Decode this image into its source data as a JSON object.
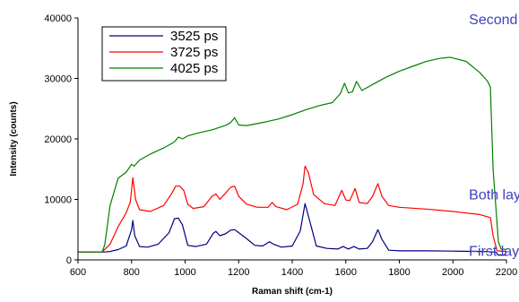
{
  "chart_data": {
    "type": "line",
    "xlabel": "Raman shift (cm-1)",
    "ylabel": "Intensity (counts)",
    "xlim": [
      600,
      2200
    ],
    "ylim": [
      0,
      40000
    ],
    "x_ticks": [
      600,
      800,
      1000,
      1200,
      1400,
      1600,
      1800,
      2000,
      2200
    ],
    "y_ticks": [
      0,
      10000,
      20000,
      30000,
      40000
    ],
    "grid": false,
    "legend_position": "top-left",
    "series": [
      {
        "name": "3525 ps",
        "color": "#000080",
        "x": [
          600,
          700,
          720,
          750,
          780,
          800,
          805,
          812,
          830,
          860,
          900,
          940,
          960,
          975,
          990,
          1010,
          1040,
          1080,
          1105,
          1115,
          1130,
          1150,
          1170,
          1185,
          1200,
          1230,
          1260,
          1290,
          1315,
          1330,
          1360,
          1400,
          1430,
          1448,
          1465,
          1490,
          1530,
          1570,
          1590,
          1610,
          1630,
          1650,
          1680,
          1700,
          1720,
          1735,
          1760,
          1800,
          1900,
          2000,
          2100,
          2160,
          2170,
          2200
        ],
        "y": [
          1300,
          1300,
          1400,
          1700,
          2300,
          5000,
          6500,
          4000,
          2200,
          2100,
          2600,
          4500,
          6800,
          6900,
          5800,
          2400,
          2200,
          2600,
          4400,
          4700,
          4000,
          4300,
          4900,
          5000,
          4500,
          3500,
          2400,
          2300,
          3000,
          2600,
          2100,
          2300,
          4800,
          9300,
          6500,
          2300,
          1900,
          1800,
          2200,
          1800,
          2200,
          1800,
          1900,
          3000,
          5000,
          3400,
          1600,
          1500,
          1500,
          1450,
          1400,
          1300,
          800,
          800
        ]
      },
      {
        "name": "3725 ps",
        "color": "#ff0000",
        "x": [
          600,
          690,
          720,
          750,
          780,
          795,
          805,
          815,
          830,
          870,
          920,
          950,
          965,
          980,
          995,
          1010,
          1030,
          1070,
          1100,
          1115,
          1130,
          1150,
          1170,
          1185,
          1200,
          1230,
          1270,
          1310,
          1325,
          1340,
          1380,
          1420,
          1440,
          1448,
          1460,
          1480,
          1520,
          1560,
          1585,
          1600,
          1615,
          1635,
          1650,
          1680,
          1700,
          1720,
          1735,
          1760,
          1800,
          1900,
          2000,
          2100,
          2140,
          2150,
          2165,
          2200
        ],
        "y": [
          1300,
          1300,
          2600,
          5500,
          7800,
          9500,
          13600,
          10000,
          8300,
          8000,
          9000,
          11000,
          12200,
          12200,
          11500,
          9200,
          8500,
          8800,
          10500,
          10900,
          10000,
          11000,
          12000,
          12200,
          10500,
          9200,
          8700,
          8700,
          9500,
          8800,
          8300,
          9200,
          12500,
          15500,
          14500,
          10800,
          9300,
          9000,
          11500,
          9900,
          9800,
          11800,
          9500,
          9300,
          10500,
          12600,
          10500,
          9000,
          8700,
          8400,
          8000,
          7500,
          7000,
          4000,
          1500,
          1400
        ]
      },
      {
        "name": "4025 ps",
        "color": "#008000",
        "x": [
          600,
          690,
          700,
          720,
          750,
          780,
          800,
          810,
          830,
          870,
          920,
          960,
          975,
          990,
          1010,
          1050,
          1100,
          1150,
          1170,
          1185,
          1200,
          1230,
          1300,
          1350,
          1400,
          1450,
          1500,
          1550,
          1580,
          1595,
          1610,
          1625,
          1640,
          1660,
          1700,
          1750,
          1800,
          1850,
          1900,
          1950,
          1990,
          2050,
          2100,
          2130,
          2140,
          2150,
          2170,
          2180,
          2200
        ],
        "y": [
          1300,
          1300,
          2500,
          9000,
          13500,
          14500,
          15800,
          15500,
          16500,
          17500,
          18500,
          19500,
          20300,
          20000,
          20500,
          21000,
          21500,
          22200,
          22700,
          23500,
          22300,
          22200,
          22800,
          23300,
          24000,
          24800,
          25500,
          26000,
          27500,
          29200,
          27600,
          27800,
          29500,
          28000,
          29000,
          30200,
          31200,
          32000,
          32800,
          33300,
          33500,
          32800,
          31000,
          29500,
          28500,
          15000,
          3000,
          1800,
          1700
        ]
      }
    ],
    "annotations": [
      {
        "text": "Second layer",
        "x": 2060,
        "y": 39000,
        "color": "#4040c0"
      },
      {
        "text": "Both layers",
        "x": 2060,
        "y": 10000,
        "color": "#4040c0"
      },
      {
        "text": "First layer",
        "x": 2060,
        "y": 700,
        "color": "#4040c0"
      }
    ]
  }
}
